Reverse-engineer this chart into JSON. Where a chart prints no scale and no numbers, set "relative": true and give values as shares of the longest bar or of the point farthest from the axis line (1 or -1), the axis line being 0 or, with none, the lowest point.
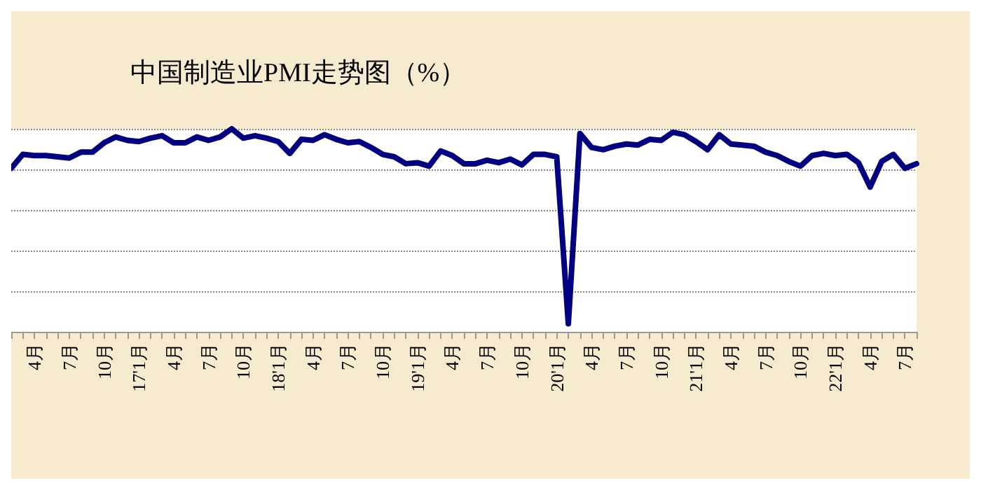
{
  "chart_data": {
    "type": "line",
    "title": "中国制造业PMI走势图（%）",
    "relative": true,
    "grid": "y",
    "marker": "none",
    "line_style": "solid",
    "categories": [
      null,
      null,
      "4月",
      null,
      null,
      "7月",
      null,
      null,
      "10月",
      null,
      null,
      "17'1月",
      null,
      null,
      "4月",
      null,
      null,
      "7月",
      null,
      null,
      "10月",
      null,
      null,
      "18'1月",
      null,
      null,
      "4月",
      null,
      null,
      "7月",
      null,
      null,
      "10月",
      null,
      null,
      "19'1月",
      null,
      null,
      "4月",
      null,
      null,
      "7月",
      null,
      null,
      "10月",
      null,
      null,
      "20'1月",
      null,
      null,
      "4月",
      null,
      null,
      "7月",
      null,
      null,
      "10月",
      null,
      null,
      "21'1月",
      null,
      null,
      "4月",
      null,
      null,
      "7月",
      null,
      null,
      "10月",
      null,
      null,
      "22'1月",
      null,
      null,
      "4月",
      null,
      null,
      "7月",
      null
    ],
    "series": [
      {
        "color": "#000080",
        "values": [
          0.805,
          0.874,
          0.868,
          0.868,
          0.862,
          0.856,
          0.885,
          0.885,
          0.931,
          0.96,
          0.943,
          0.937,
          0.954,
          0.966,
          0.931,
          0.931,
          0.96,
          0.943,
          0.96,
          1,
          0.954,
          0.966,
          0.954,
          0.937,
          0.879,
          0.948,
          0.943,
          0.971,
          0.948,
          0.931,
          0.937,
          0.908,
          0.874,
          0.862,
          0.828,
          0.833,
          0.816,
          0.891,
          0.868,
          0.828,
          0.828,
          0.845,
          0.833,
          0.851,
          0.822,
          0.874,
          0.874,
          0.862,
          0.04,
          0.977,
          0.908,
          0.897,
          0.914,
          0.925,
          0.92,
          0.948,
          0.943,
          0.983,
          0.971,
          0.937,
          0.897,
          0.971,
          0.925,
          0.92,
          0.914,
          0.885,
          0.868,
          0.839,
          0.816,
          0.868,
          0.879,
          0.868,
          0.874,
          0.833,
          0.713,
          0.839,
          0.874,
          0.805,
          0.828
        ]
      }
    ]
  }
}
